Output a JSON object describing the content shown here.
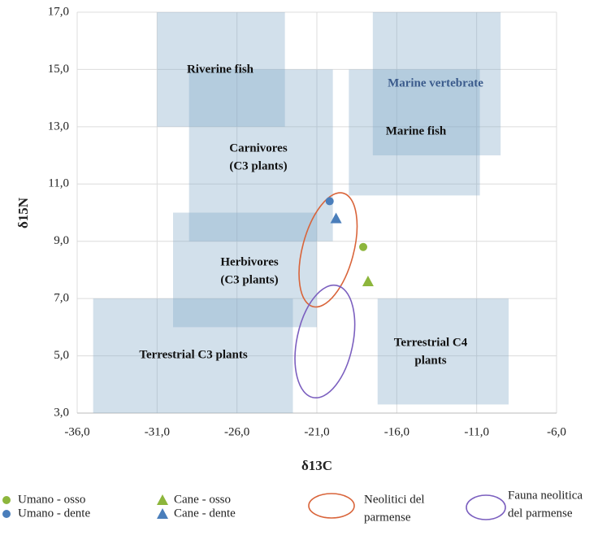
{
  "chart_data": {
    "type": "scatter",
    "xlabel": "δ13C",
    "ylabel": "δ15N",
    "xlim": [
      -36,
      -6
    ],
    "ylim": [
      3,
      17
    ],
    "xticks": [
      {
        "value": -36,
        "label": "-36,0"
      },
      {
        "value": -31,
        "label": "-31,0"
      },
      {
        "value": -26,
        "label": "-26,0"
      },
      {
        "value": -21,
        "label": "-21,0"
      },
      {
        "value": -16,
        "label": "-16,0"
      },
      {
        "value": -11,
        "label": "-11,0"
      },
      {
        "value": -6,
        "label": "-6,0"
      }
    ],
    "yticks": [
      {
        "value": 3,
        "label": "3,0"
      },
      {
        "value": 5,
        "label": "5,0"
      },
      {
        "value": 7,
        "label": "7,0"
      },
      {
        "value": 9,
        "label": "9,0"
      },
      {
        "value": 11,
        "label": "11,0"
      },
      {
        "value": 13,
        "label": "13,0"
      },
      {
        "value": 15,
        "label": "15,0"
      },
      {
        "value": 17,
        "label": "17,0"
      }
    ],
    "grid": true,
    "region_color": "#7ea6c6",
    "regions": [
      {
        "label": [
          "Riverine fish"
        ],
        "label_color": "#111111",
        "x": [
          -31,
          -23
        ],
        "y": [
          13,
          17
        ]
      },
      {
        "label": [
          "Carnivores",
          "(C3 plants)"
        ],
        "label_color": "#111111",
        "x": [
          -29,
          -20
        ],
        "y": [
          9,
          15
        ]
      },
      {
        "label": [
          "Herbivores",
          "(C3 plants)"
        ],
        "label_color": "#111111",
        "x": [
          -30,
          -21
        ],
        "y": [
          6,
          10
        ]
      },
      {
        "label": [
          "Terrestrial C3 plants"
        ],
        "label_color": "#111111",
        "x": [
          -35,
          -22.5
        ],
        "y": [
          3,
          7
        ]
      },
      {
        "label": [
          "Marine vertebrate"
        ],
        "label_color": "#3b5b8c",
        "x": [
          -17.5,
          -9.5
        ],
        "y": [
          12,
          17
        ]
      },
      {
        "label": [
          "Marine fish"
        ],
        "label_color": "#111111",
        "x": [
          -19,
          -10.8
        ],
        "y": [
          10.6,
          15
        ]
      },
      {
        "label": [
          "Terrestrial C4",
          "plants"
        ],
        "label_color": "#111111",
        "x": [
          -17.2,
          -9
        ],
        "y": [
          3.3,
          7
        ]
      }
    ],
    "series": [
      {
        "name": "Umano - osso",
        "color": "#8db63c",
        "marker": "circle",
        "x": [
          -18.1
        ],
        "values": [
          8.8
        ]
      },
      {
        "name": "Umano - dente",
        "color": "#4a7ebb",
        "marker": "circle",
        "x": [
          -20.2
        ],
        "values": [
          10.4
        ]
      },
      {
        "name": "Cane - osso",
        "color": "#8db63c",
        "marker": "triangle",
        "x": [
          -17.8
        ],
        "values": [
          7.6
        ]
      },
      {
        "name": "Cane - dente",
        "color": "#4a7ebb",
        "marker": "triangle",
        "x": [
          -19.8
        ],
        "values": [
          9.8
        ]
      }
    ],
    "ellipses": [
      {
        "name": [
          "Neolitici del",
          "parmense"
        ],
        "color": "#d9643a",
        "cx": -20.3,
        "cy": 8.7,
        "rx": 1.6,
        "ry": 2.05,
        "angle": 15
      },
      {
        "name": [
          "Fauna neolitica",
          "del parmense"
        ],
        "color": "#7b5fbf",
        "cx": -20.5,
        "cy": 5.5,
        "rx": 1.75,
        "ry": 2.0,
        "angle": 12
      }
    ]
  }
}
